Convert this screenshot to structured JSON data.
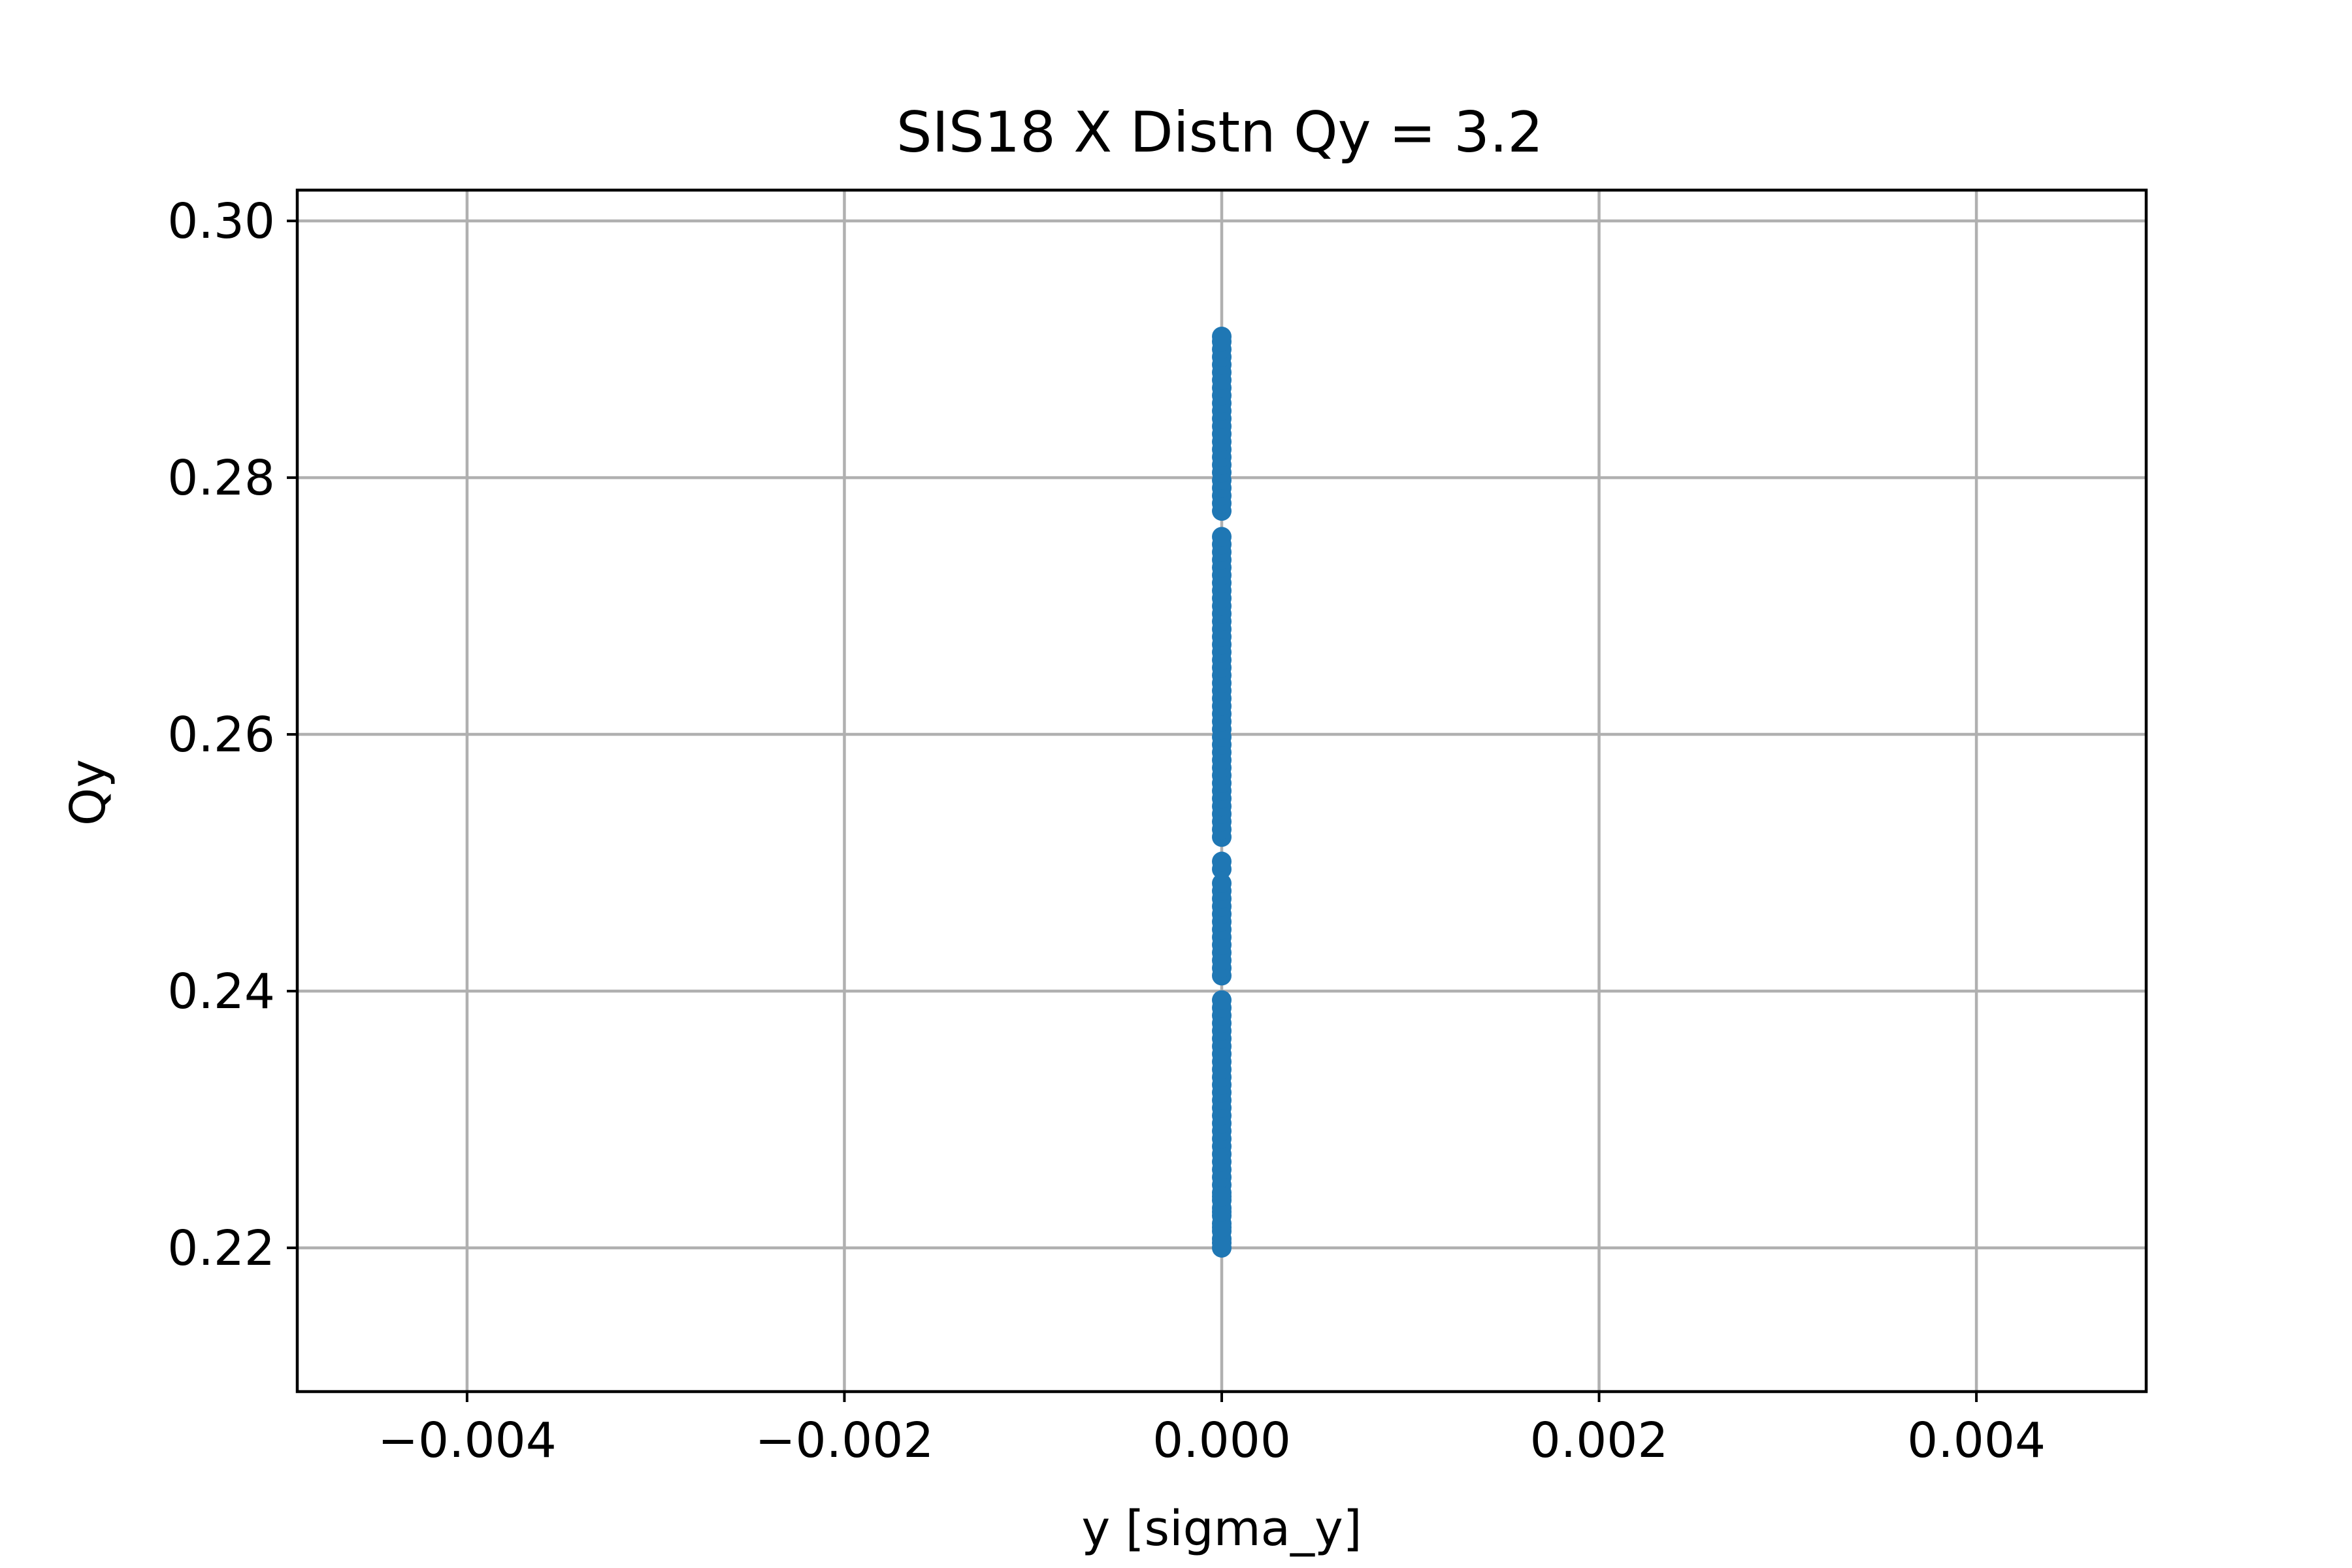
{
  "chart_data": {
    "type": "scatter",
    "title": "SIS18 X Distn Qy = 3.2",
    "xlabel": "y [sigma_y]",
    "ylabel": "Qy",
    "xlim": [
      -0.0049,
      0.0049
    ],
    "ylim": [
      0.2088,
      0.3024
    ],
    "xticks": [
      -0.004,
      -0.002,
      0.0,
      0.002,
      0.004
    ],
    "xtick_labels": [
      "−0.004",
      "−0.002",
      "0.000",
      "0.002",
      "0.004"
    ],
    "yticks": [
      0.22,
      0.24,
      0.26,
      0.28,
      0.3
    ],
    "ytick_labels": [
      "0.22",
      "0.24",
      "0.26",
      "0.28",
      "0.30"
    ],
    "grid": true,
    "marker_color": "#1f77b4",
    "series": [
      {
        "x": [
          0,
          0,
          0,
          0,
          0,
          0,
          0,
          0,
          0,
          0,
          0,
          0,
          0,
          0,
          0,
          0,
          0,
          0,
          0,
          0,
          0,
          0,
          0,
          0,
          0,
          0,
          0,
          0,
          0,
          0,
          0,
          0,
          0,
          0,
          0,
          0,
          0,
          0,
          0,
          0,
          0,
          0,
          0,
          0,
          0,
          0,
          0,
          0,
          0,
          0,
          0,
          0,
          0,
          0,
          0,
          0,
          0,
          0,
          0,
          0,
          0,
          0,
          0,
          0,
          0,
          0,
          0,
          0,
          0,
          0,
          0,
          0,
          0,
          0,
          0,
          0,
          0,
          0,
          0,
          0,
          0,
          0,
          0,
          0,
          0,
          0,
          0,
          0,
          0,
          0,
          0,
          0,
          0,
          0,
          0,
          0,
          0,
          0,
          0,
          0,
          0,
          0,
          0,
          0,
          0,
          0,
          0,
          0,
          0,
          0,
          0,
          0,
          0,
          0,
          0,
          0
        ],
        "y": [
          0.22,
          0.2207,
          0.2213,
          0.2219,
          0.2225,
          0.2231,
          0.2237,
          0.2243,
          0.2249,
          0.2255,
          0.2261,
          0.2267,
          0.2273,
          0.2279,
          0.2285,
          0.2291,
          0.2297,
          0.2303,
          0.2309,
          0.2315,
          0.2321,
          0.2327,
          0.2333,
          0.2339,
          0.2345,
          0.2351,
          0.2357,
          0.2363,
          0.2369,
          0.2375,
          0.2381,
          0.2387,
          0.2393,
          0.2412,
          0.2418,
          0.2424,
          0.243,
          0.2436,
          0.2442,
          0.2448,
          0.2454,
          0.246,
          0.2466,
          0.2472,
          0.2478,
          0.2484,
          0.2495,
          0.2501,
          0.252,
          0.2526,
          0.2532,
          0.2538,
          0.2544,
          0.255,
          0.2556,
          0.2562,
          0.2568,
          0.2574,
          0.258,
          0.2586,
          0.2592,
          0.2598,
          0.2604,
          0.261,
          0.2616,
          0.2622,
          0.2628,
          0.2634,
          0.264,
          0.2646,
          0.2652,
          0.2658,
          0.2664,
          0.267,
          0.2676,
          0.2682,
          0.2688,
          0.2694,
          0.27,
          0.2706,
          0.2712,
          0.2718,
          0.2724,
          0.273,
          0.2736,
          0.2742,
          0.2748,
          0.2754,
          0.2774,
          0.278,
          0.2786,
          0.2792,
          0.2798,
          0.2804,
          0.281,
          0.2816,
          0.2822,
          0.2828,
          0.2834,
          0.284,
          0.2846,
          0.2852,
          0.2858,
          0.2864,
          0.287,
          0.2876,
          0.2882,
          0.2888,
          0.2894,
          0.29,
          0.2906,
          0.291,
          0.2204,
          0.2216,
          0.2228,
          0.224
        ]
      }
    ]
  }
}
